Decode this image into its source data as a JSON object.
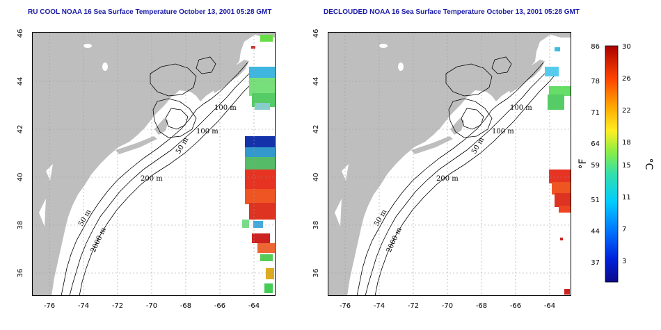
{
  "panels": [
    {
      "title": "RU COOL NOAA 16 Sea Surface Temperature October 13, 2001 05:28 GMT"
    },
    {
      "title": "DECLOUDED NOAA 16 Sea Surface Temperature October 13, 2001 05:28 GMT"
    }
  ],
  "axes": {
    "lon_ticks": [
      -76,
      -74,
      -72,
      -70,
      -68,
      -66,
      -64
    ],
    "lat_ticks": [
      46,
      44,
      42,
      40,
      38,
      36
    ],
    "lon_range": [
      -77.2,
      -63.0
    ],
    "lat_range": [
      35.0,
      46.0
    ]
  },
  "contour_labels": [
    "100 m",
    "100 m",
    "50 m",
    "200 m",
    "50 m",
    "2000 m"
  ],
  "colorbar": {
    "fahrenheit_ticks": [
      "86",
      "78",
      "71",
      "64",
      "59",
      "51",
      "44",
      "37"
    ],
    "celsius_ticks": [
      "30",
      "26",
      "22",
      "18",
      "15",
      "11",
      "7",
      "3"
    ],
    "fahrenheit_unit": "°F",
    "celsius_unit": "°C"
  },
  "colors": {
    "land": "#bebebe",
    "ocean": "#ffffff",
    "title": "#1a1aa8",
    "grid": "#9a9a9a"
  }
}
